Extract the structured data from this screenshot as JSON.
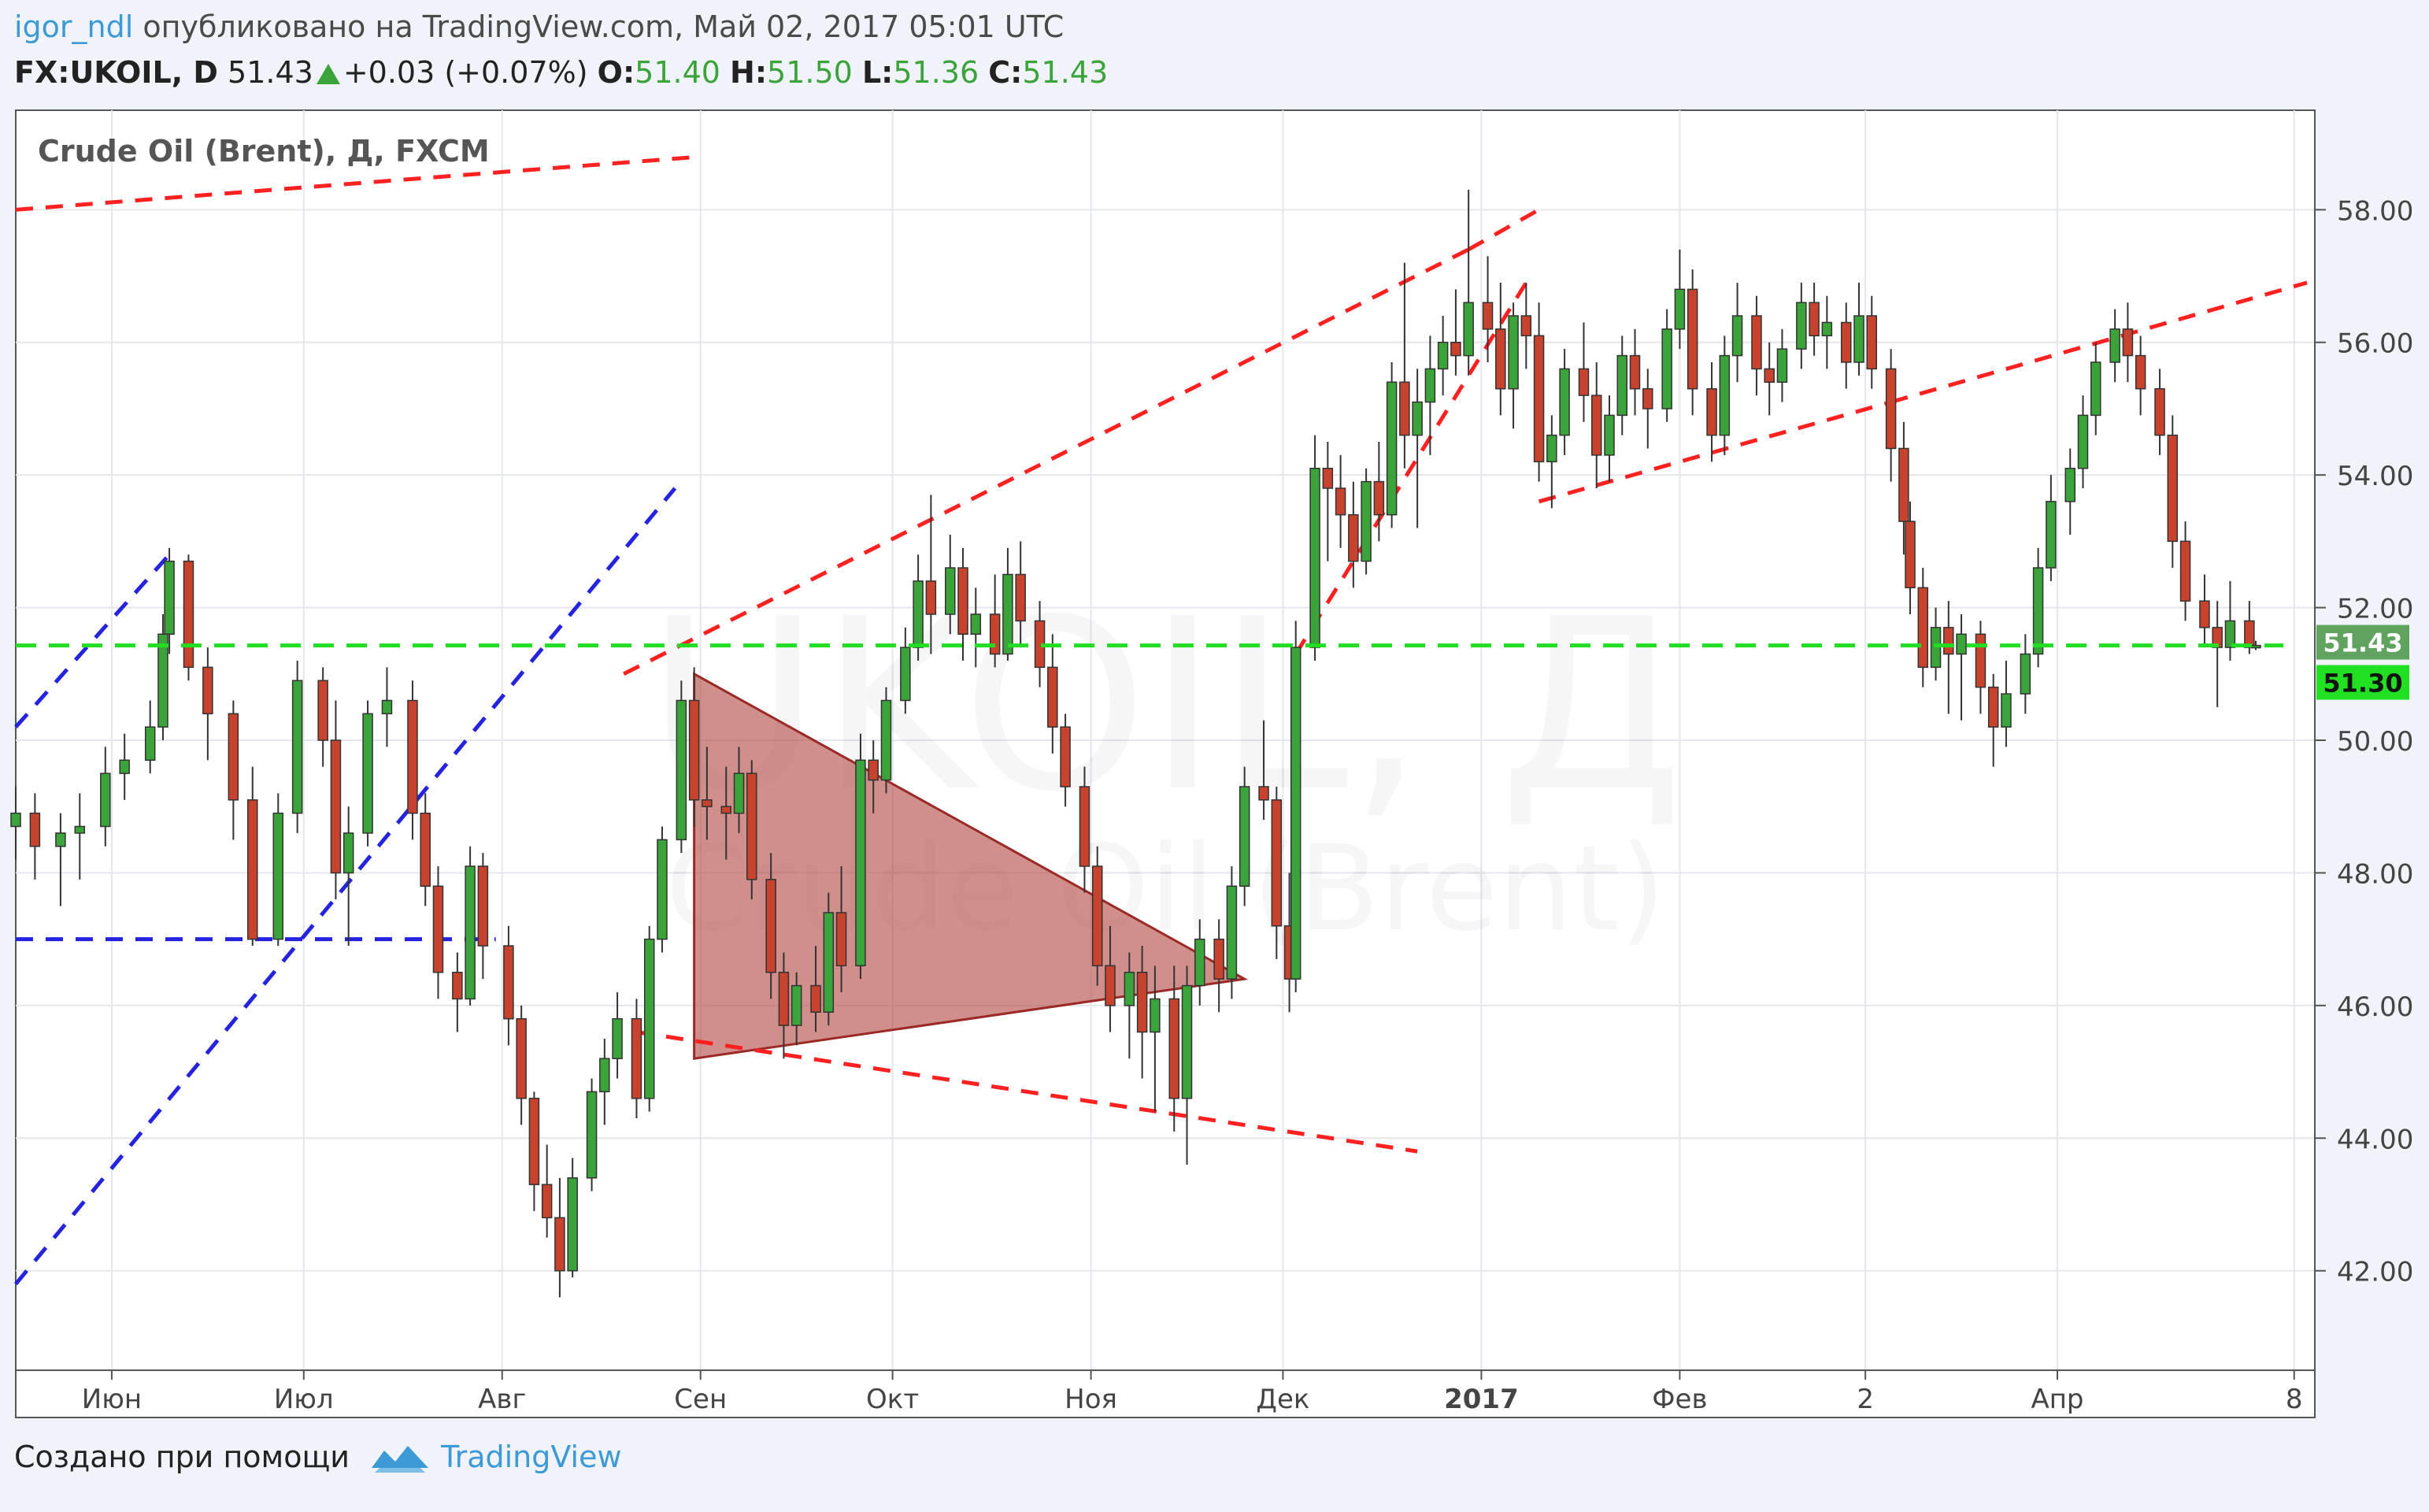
{
  "header": {
    "user": "igor_ndl",
    "published_text": "опубликовано на TradingView.com, Май 02, 2017 05:01 UTC",
    "symbol": "FX:UKOIL, D",
    "last": "51.43",
    "change": "+0.03 (+0.07%)",
    "o_label": "O:",
    "o_value": "51.40",
    "h_label": "H:",
    "h_value": "51.50",
    "l_label": "L:",
    "l_value": "51.36",
    "c_label": "C:",
    "c_value": "51.43"
  },
  "footer": {
    "created_text": "Создано при помощи",
    "brand": "TradingView"
  },
  "colors": {
    "up": "#3aa33a",
    "down": "#c8432e",
    "trend_red": "#ff2020",
    "trend_blue": "#2424e0",
    "level_green": "#22dd22",
    "triangle_fill": "#b54a45"
  },
  "chart_data": {
    "type": "candlestick",
    "legend": "Crude Oil (Brent), Д, FXCM",
    "watermark": "UKOIL, Д",
    "watermark_sub": "Crude Oil (Brent)",
    "ylim": [
      40.5,
      59.5
    ],
    "y_ticks": [
      "42.00",
      "44.00",
      "46.00",
      "48.00",
      "50.00",
      "52.00",
      "54.00",
      "56.00",
      "58.00"
    ],
    "x_ticks": [
      {
        "label": "Июн",
        "date": "2016-06-01"
      },
      {
        "label": "Июл",
        "date": "2016-07-01"
      },
      {
        "label": "Авг",
        "date": "2016-08-01"
      },
      {
        "label": "Сен",
        "date": "2016-09-01"
      },
      {
        "label": "Окт",
        "date": "2016-10-01"
      },
      {
        "label": "Ноя",
        "date": "2016-11-01"
      },
      {
        "label": "Дек",
        "date": "2016-12-01"
      },
      {
        "label": "2017",
        "date": "2017-01-01"
      },
      {
        "label": "Фев",
        "date": "2017-02-01"
      },
      {
        "label": "2",
        "date": "2017-03-02"
      },
      {
        "label": "Апр",
        "date": "2017-04-01"
      },
      {
        "label": "8",
        "date": "2017-05-08"
      }
    ],
    "price_labels": [
      {
        "label": "51.43",
        "value": 51.43
      },
      {
        "label": "51.30",
        "value": 51.3
      }
    ],
    "candles": [
      [
        "2016-05-17",
        48.7,
        49.3,
        48.2,
        48.9
      ],
      [
        "2016-05-20",
        48.9,
        49.2,
        47.9,
        48.4
      ],
      [
        "2016-05-24",
        48.4,
        48.9,
        47.5,
        48.6
      ],
      [
        "2016-05-27",
        48.6,
        49.2,
        47.9,
        48.7
      ],
      [
        "2016-05-31",
        48.7,
        49.9,
        48.4,
        49.5
      ],
      [
        "2016-06-03",
        49.5,
        50.1,
        49.1,
        49.7
      ],
      [
        "2016-06-07",
        49.7,
        50.6,
        49.5,
        50.2
      ],
      [
        "2016-06-09",
        50.2,
        51.9,
        50.0,
        51.6
      ],
      [
        "2016-06-10",
        51.6,
        52.9,
        51.3,
        52.7
      ],
      [
        "2016-06-13",
        52.7,
        52.8,
        50.9,
        51.1
      ],
      [
        "2016-06-16",
        51.1,
        51.4,
        49.7,
        50.4
      ],
      [
        "2016-06-20",
        50.4,
        50.6,
        48.5,
        49.1
      ],
      [
        "2016-06-23",
        49.1,
        49.6,
        46.9,
        47.0
      ],
      [
        "2016-06-27",
        47.0,
        49.2,
        46.9,
        48.9
      ],
      [
        "2016-06-30",
        48.9,
        51.2,
        48.6,
        50.9
      ],
      [
        "2016-07-04",
        50.9,
        51.1,
        49.6,
        50.0
      ],
      [
        "2016-07-06",
        50.0,
        50.6,
        47.6,
        48.0
      ],
      [
        "2016-07-08",
        48.0,
        49.0,
        46.9,
        48.6
      ],
      [
        "2016-07-11",
        48.6,
        50.6,
        48.4,
        50.4
      ],
      [
        "2016-07-14",
        50.4,
        51.1,
        49.9,
        50.6
      ],
      [
        "2016-07-18",
        50.6,
        50.9,
        48.5,
        48.9
      ],
      [
        "2016-07-20",
        48.9,
        49.2,
        47.5,
        47.8
      ],
      [
        "2016-07-22",
        47.8,
        48.1,
        46.1,
        46.5
      ],
      [
        "2016-07-25",
        46.5,
        46.8,
        45.6,
        46.1
      ],
      [
        "2016-07-27",
        46.1,
        48.4,
        46.0,
        48.1
      ],
      [
        "2016-07-29",
        48.1,
        48.3,
        46.4,
        46.9
      ],
      [
        "2016-08-02",
        46.9,
        47.2,
        45.4,
        45.8
      ],
      [
        "2016-08-04",
        45.8,
        46.0,
        44.2,
        44.6
      ],
      [
        "2016-08-06",
        44.6,
        44.7,
        42.9,
        43.3
      ],
      [
        "2016-08-08",
        43.3,
        43.9,
        42.5,
        42.8
      ],
      [
        "2016-08-10",
        42.8,
        43.4,
        41.6,
        42.0
      ],
      [
        "2016-08-12",
        42.0,
        43.7,
        41.9,
        43.4
      ],
      [
        "2016-08-15",
        43.4,
        44.9,
        43.2,
        44.7
      ],
      [
        "2016-08-17",
        44.7,
        45.5,
        44.2,
        45.2
      ],
      [
        "2016-08-19",
        45.2,
        46.2,
        44.9,
        45.8
      ],
      [
        "2016-08-22",
        45.8,
        46.1,
        44.3,
        44.6
      ],
      [
        "2016-08-24",
        44.6,
        47.2,
        44.4,
        47.0
      ],
      [
        "2016-08-26",
        47.0,
        48.7,
        46.8,
        48.5
      ],
      [
        "2016-08-29",
        48.5,
        50.9,
        48.3,
        50.6
      ],
      [
        "2016-08-31",
        50.6,
        51.1,
        48.7,
        49.1
      ],
      [
        "2016-09-02",
        49.1,
        49.9,
        48.5,
        49.0
      ],
      [
        "2016-09-05",
        49.0,
        49.6,
        48.2,
        48.9
      ],
      [
        "2016-09-07",
        48.9,
        49.9,
        48.6,
        49.5
      ],
      [
        "2016-09-09",
        49.5,
        49.7,
        47.6,
        47.9
      ],
      [
        "2016-09-12",
        47.9,
        48.3,
        46.1,
        46.5
      ],
      [
        "2016-09-14",
        46.5,
        46.8,
        45.2,
        45.7
      ],
      [
        "2016-09-16",
        45.7,
        46.5,
        45.4,
        46.3
      ],
      [
        "2016-09-19",
        46.3,
        46.9,
        45.6,
        45.9
      ],
      [
        "2016-09-21",
        45.9,
        47.7,
        45.7,
        47.4
      ],
      [
        "2016-09-23",
        47.4,
        48.1,
        46.2,
        46.6
      ],
      [
        "2016-09-26",
        46.6,
        50.1,
        46.4,
        49.7
      ],
      [
        "2016-09-28",
        49.7,
        50.0,
        48.9,
        49.4
      ],
      [
        "2016-09-30",
        49.4,
        50.8,
        49.2,
        50.6
      ],
      [
        "2016-10-03",
        50.6,
        51.7,
        50.4,
        51.4
      ],
      [
        "2016-10-05",
        51.4,
        52.8,
        51.2,
        52.4
      ],
      [
        "2016-10-07",
        52.4,
        53.7,
        51.3,
        51.9
      ],
      [
        "2016-10-10",
        51.9,
        53.1,
        51.6,
        52.6
      ],
      [
        "2016-10-12",
        52.6,
        52.9,
        51.2,
        51.6
      ],
      [
        "2016-10-14",
        51.6,
        52.3,
        51.1,
        51.9
      ],
      [
        "2016-10-17",
        51.9,
        52.5,
        51.1,
        51.3
      ],
      [
        "2016-10-19",
        51.3,
        52.9,
        51.2,
        52.5
      ],
      [
        "2016-10-21",
        52.5,
        53.0,
        51.4,
        51.8
      ],
      [
        "2016-10-24",
        51.8,
        52.1,
        50.8,
        51.1
      ],
      [
        "2016-10-26",
        51.1,
        51.6,
        49.8,
        50.2
      ],
      [
        "2016-10-28",
        50.2,
        50.4,
        49.0,
        49.3
      ],
      [
        "2016-10-31",
        49.3,
        49.6,
        47.7,
        48.1
      ],
      [
        "2016-11-02",
        48.1,
        48.4,
        46.3,
        46.6
      ],
      [
        "2016-11-04",
        46.6,
        47.2,
        45.6,
        46.0
      ],
      [
        "2016-11-07",
        46.0,
        46.8,
        45.2,
        46.5
      ],
      [
        "2016-11-09",
        46.5,
        46.9,
        44.9,
        45.6
      ],
      [
        "2016-11-11",
        45.6,
        46.6,
        44.4,
        46.1
      ],
      [
        "2016-11-14",
        46.1,
        46.6,
        44.1,
        44.6
      ],
      [
        "2016-11-16",
        44.6,
        46.6,
        43.6,
        46.3
      ],
      [
        "2016-11-18",
        46.3,
        47.3,
        46.0,
        47.0
      ],
      [
        "2016-11-21",
        47.0,
        47.3,
        45.9,
        46.4
      ],
      [
        "2016-11-23",
        46.4,
        48.1,
        46.1,
        47.8
      ],
      [
        "2016-11-25",
        47.8,
        49.6,
        47.5,
        49.3
      ],
      [
        "2016-11-28",
        49.3,
        50.3,
        48.8,
        49.1
      ],
      [
        "2016-11-30",
        49.1,
        49.3,
        46.7,
        47.2
      ],
      [
        "2016-12-02",
        47.2,
        48.0,
        45.9,
        46.4
      ],
      [
        "2016-12-03",
        46.4,
        51.8,
        46.2,
        51.4
      ],
      [
        "2016-12-06",
        51.4,
        54.6,
        51.2,
        54.1
      ],
      [
        "2016-12-08",
        54.1,
        54.5,
        52.7,
        53.8
      ],
      [
        "2016-12-10",
        53.8,
        54.3,
        52.9,
        53.4
      ],
      [
        "2016-12-12",
        53.4,
        53.9,
        52.3,
        52.7
      ],
      [
        "2016-12-14",
        52.7,
        54.1,
        52.5,
        53.9
      ],
      [
        "2016-12-16",
        53.9,
        54.5,
        53.0,
        53.4
      ],
      [
        "2016-12-18",
        53.4,
        55.7,
        53.2,
        55.4
      ],
      [
        "2016-12-20",
        55.4,
        57.2,
        54.1,
        54.6
      ],
      [
        "2016-12-22",
        54.6,
        55.6,
        53.2,
        55.1
      ],
      [
        "2016-12-24",
        55.1,
        56.1,
        54.3,
        55.6
      ],
      [
        "2016-12-26",
        55.6,
        56.4,
        55.2,
        56.0
      ],
      [
        "2016-12-28",
        56.0,
        56.8,
        55.5,
        55.8
      ],
      [
        "2016-12-30",
        55.8,
        58.3,
        55.5,
        56.6
      ],
      [
        "2017-01-02",
        56.6,
        57.3,
        55.7,
        56.2
      ],
      [
        "2017-01-04",
        56.2,
        56.9,
        54.9,
        55.3
      ],
      [
        "2017-01-06",
        55.3,
        56.6,
        54.7,
        56.4
      ],
      [
        "2017-01-08",
        56.4,
        56.9,
        55.6,
        56.1
      ],
      [
        "2017-01-10",
        56.1,
        56.6,
        53.9,
        54.2
      ],
      [
        "2017-01-12",
        54.2,
        54.9,
        53.5,
        54.6
      ],
      [
        "2017-01-14",
        54.6,
        55.9,
        54.3,
        55.6
      ],
      [
        "2017-01-17",
        55.6,
        56.3,
        54.8,
        55.2
      ],
      [
        "2017-01-19",
        55.2,
        55.7,
        53.8,
        54.3
      ],
      [
        "2017-01-21",
        54.3,
        55.2,
        53.9,
        54.9
      ],
      [
        "2017-01-23",
        54.9,
        56.1,
        54.6,
        55.8
      ],
      [
        "2017-01-25",
        55.8,
        56.2,
        54.9,
        55.3
      ],
      [
        "2017-01-27",
        55.3,
        55.6,
        54.4,
        55.0
      ],
      [
        "2017-01-30",
        55.0,
        56.5,
        54.8,
        56.2
      ],
      [
        "2017-02-01",
        56.2,
        57.4,
        55.9,
        56.8
      ],
      [
        "2017-02-03",
        56.8,
        57.1,
        54.9,
        55.3
      ],
      [
        "2017-02-06",
        55.3,
        55.7,
        54.2,
        54.6
      ],
      [
        "2017-02-08",
        54.6,
        56.1,
        54.3,
        55.8
      ],
      [
        "2017-02-10",
        55.8,
        56.9,
        55.4,
        56.4
      ],
      [
        "2017-02-13",
        56.4,
        56.7,
        55.2,
        55.6
      ],
      [
        "2017-02-15",
        55.6,
        56.0,
        54.9,
        55.4
      ],
      [
        "2017-02-17",
        55.4,
        56.2,
        55.1,
        55.9
      ],
      [
        "2017-02-20",
        55.9,
        56.9,
        55.6,
        56.6
      ],
      [
        "2017-02-22",
        56.6,
        56.9,
        55.8,
        56.1
      ],
      [
        "2017-02-24",
        56.1,
        56.7,
        55.6,
        56.3
      ],
      [
        "2017-02-27",
        56.3,
        56.6,
        55.3,
        55.7
      ],
      [
        "2017-03-01",
        55.7,
        56.9,
        55.5,
        56.4
      ],
      [
        "2017-03-03",
        56.4,
        56.7,
        55.3,
        55.6
      ],
      [
        "2017-03-06",
        55.6,
        55.9,
        53.9,
        54.4
      ],
      [
        "2017-03-08",
        54.4,
        54.8,
        52.8,
        53.3
      ],
      [
        "2017-03-09",
        53.3,
        53.6,
        51.9,
        52.3
      ],
      [
        "2017-03-11",
        52.3,
        52.6,
        50.8,
        51.1
      ],
      [
        "2017-03-13",
        51.1,
        52.0,
        50.9,
        51.7
      ],
      [
        "2017-03-15",
        51.7,
        52.1,
        50.4,
        51.3
      ],
      [
        "2017-03-17",
        51.3,
        51.9,
        50.3,
        51.6
      ],
      [
        "2017-03-20",
        51.6,
        51.8,
        50.4,
        50.8
      ],
      [
        "2017-03-22",
        50.8,
        51.0,
        49.6,
        50.2
      ],
      [
        "2017-03-24",
        50.2,
        51.2,
        49.9,
        50.7
      ],
      [
        "2017-03-27",
        50.7,
        51.6,
        50.4,
        51.3
      ],
      [
        "2017-03-29",
        51.3,
        52.9,
        51.1,
        52.6
      ],
      [
        "2017-03-31",
        52.6,
        54.0,
        52.4,
        53.6
      ],
      [
        "2017-04-03",
        53.6,
        54.4,
        53.1,
        54.1
      ],
      [
        "2017-04-05",
        54.1,
        55.2,
        53.8,
        54.9
      ],
      [
        "2017-04-07",
        54.9,
        56.0,
        54.6,
        55.7
      ],
      [
        "2017-04-10",
        55.7,
        56.5,
        55.4,
        56.2
      ],
      [
        "2017-04-12",
        56.2,
        56.6,
        55.4,
        55.8
      ],
      [
        "2017-04-14",
        55.8,
        56.1,
        54.9,
        55.3
      ],
      [
        "2017-04-17",
        55.3,
        55.6,
        54.3,
        54.6
      ],
      [
        "2017-04-19",
        54.6,
        54.9,
        52.6,
        53.0
      ],
      [
        "2017-04-21",
        53.0,
        53.3,
        51.8,
        52.1
      ],
      [
        "2017-04-24",
        52.1,
        52.5,
        51.4,
        51.7
      ],
      [
        "2017-04-26",
        51.7,
        52.1,
        50.5,
        51.4
      ],
      [
        "2017-04-28",
        51.4,
        52.4,
        51.2,
        51.8
      ],
      [
        "2017-05-01",
        51.8,
        52.1,
        51.3,
        51.4
      ],
      [
        "2017-05-02",
        51.4,
        51.5,
        51.36,
        51.43
      ]
    ],
    "trend_lines_red": [
      [
        [
          "2016-05-17",
          58.0
        ],
        [
          "2016-09-01",
          58.8
        ]
      ],
      [
        [
          "2016-08-20",
          51.0
        ],
        [
          "2016-12-30",
          57.4
        ]
      ],
      [
        [
          "2016-08-22",
          45.6
        ],
        [
          "2016-12-22",
          43.8
        ]
      ],
      [
        [
          "2016-12-03",
          51.3
        ],
        [
          "2017-01-08",
          56.9
        ]
      ],
      [
        [
          "2016-12-30",
          57.4
        ],
        [
          "2017-01-10",
          58.0
        ]
      ],
      [
        [
          "2017-01-10",
          53.6
        ],
        [
          "2017-03-06",
          55.1
        ]
      ],
      [
        [
          "2017-03-06",
          55.1
        ],
        [
          "2017-05-10",
          56.9
        ]
      ]
    ],
    "trend_lines_blue": [
      [
        [
          "2016-05-17",
          50.2
        ],
        [
          "2016-06-10",
          52.8
        ]
      ],
      [
        [
          "2016-05-17",
          41.8
        ],
        [
          "2016-08-28",
          53.8
        ]
      ],
      [
        [
          "2016-05-17",
          47.0
        ],
        [
          "2016-07-31",
          47.0
        ]
      ]
    ],
    "triangle": [
      [
        "2016-08-31",
        51.0
      ],
      [
        "2016-08-31",
        45.2
      ],
      [
        "2016-11-25",
        46.4
      ]
    ],
    "level_green": 51.43
  }
}
